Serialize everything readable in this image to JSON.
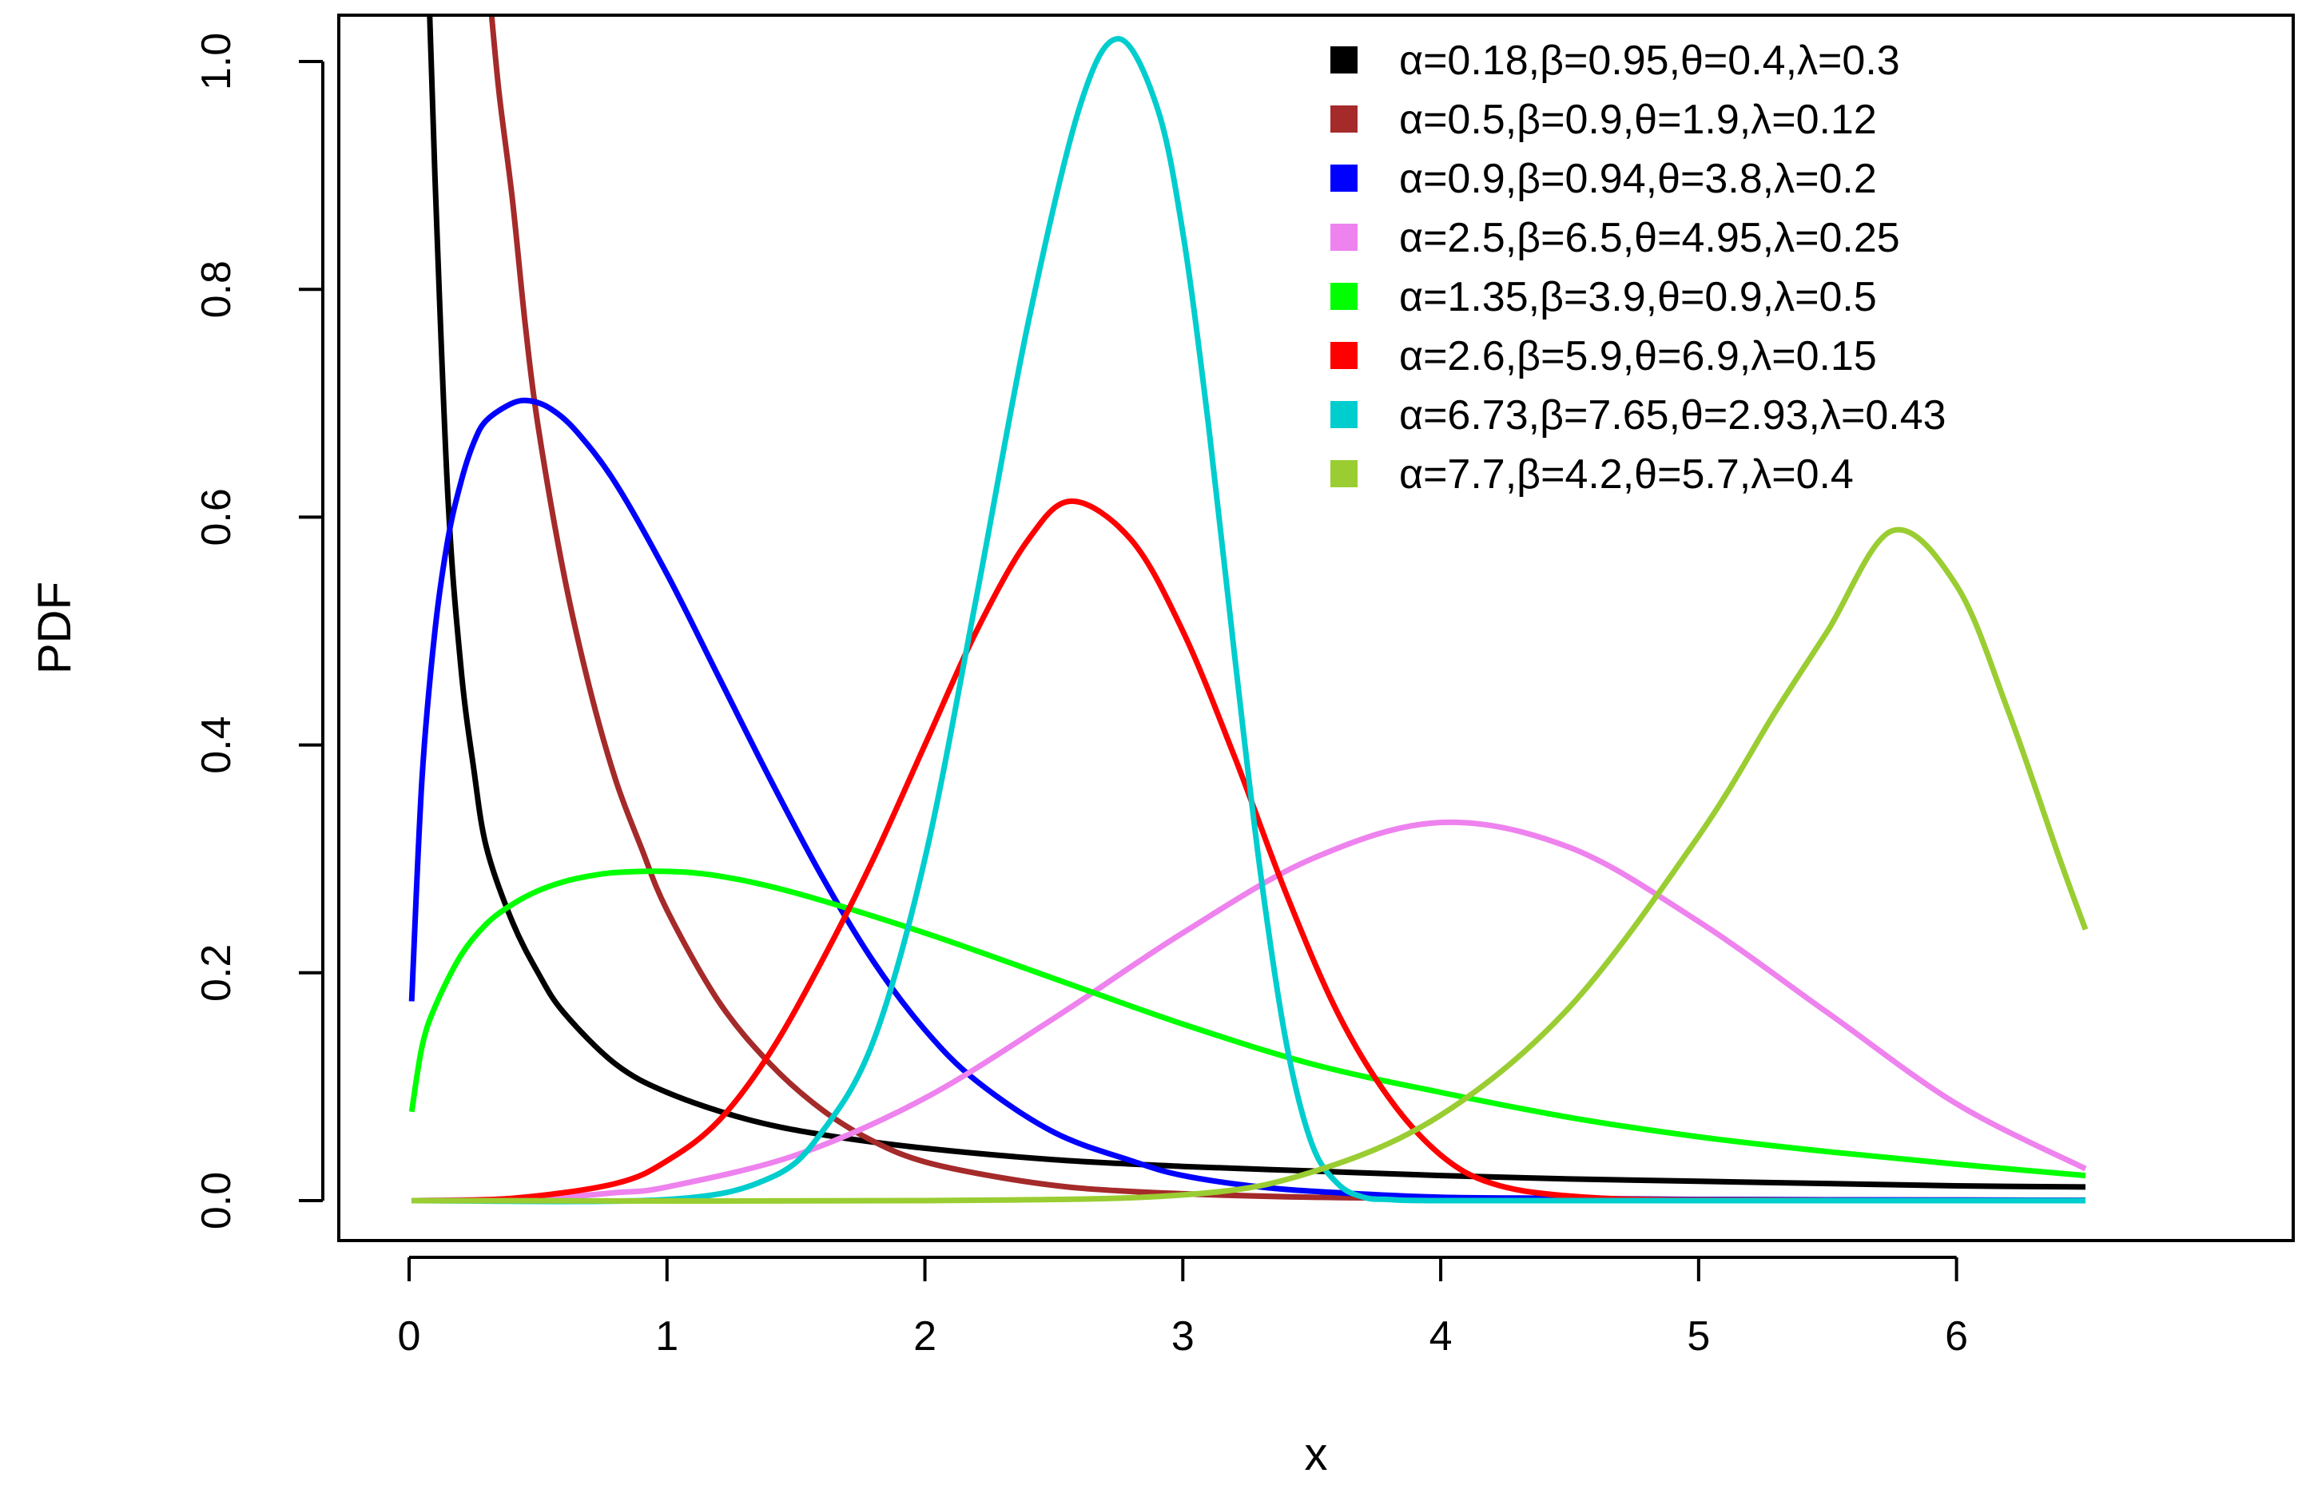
{
  "chart_data": {
    "type": "line",
    "xlabel": "x",
    "ylabel": "PDF",
    "xlim": [
      0,
      6.5
    ],
    "ylim": [
      0,
      1.0
    ],
    "x_ticks": [
      0,
      1,
      2,
      3,
      4,
      5,
      6
    ],
    "x_tick_labels": [
      "0",
      "1",
      "2",
      "3",
      "4",
      "5",
      "6"
    ],
    "y_ticks": [
      0,
      0.2,
      0.4,
      0.6,
      0.8,
      1.0
    ],
    "y_tick_labels": [
      "0.0",
      "0.2",
      "0.4",
      "0.6",
      "0.8",
      "1.0"
    ],
    "grid": false,
    "legend_position": "top-right",
    "series": [
      {
        "name": "α=0.18,β=0.95,θ=0.4,λ=0.3",
        "color": "#000000",
        "x": [
          0.08,
          0.1,
          0.15,
          0.2,
          0.25,
          0.3,
          0.4,
          0.5,
          0.6,
          0.8,
          1.0,
          1.3,
          1.6,
          2.0,
          2.5,
          3.0,
          3.5,
          4.0,
          4.5,
          5.0,
          5.5,
          6.0,
          6.5
        ],
        "y": [
          1.04,
          0.9,
          0.62,
          0.47,
          0.38,
          0.31,
          0.245,
          0.2,
          0.165,
          0.12,
          0.095,
          0.072,
          0.058,
          0.046,
          0.036,
          0.03,
          0.026,
          0.022,
          0.019,
          0.017,
          0.015,
          0.013,
          0.012
        ]
      },
      {
        "name": "α=0.5,β=0.9,θ=1.9,λ=0.12",
        "color": "#A52A2A",
        "x": [
          0.32,
          0.35,
          0.4,
          0.45,
          0.5,
          0.6,
          0.7,
          0.8,
          0.9,
          1.0,
          1.2,
          1.4,
          1.6,
          1.8,
          2.0,
          2.3,
          2.6,
          3.0,
          3.5,
          4.0,
          5.0,
          6.0,
          6.5
        ],
        "y": [
          1.04,
          0.97,
          0.88,
          0.77,
          0.68,
          0.55,
          0.45,
          0.37,
          0.31,
          0.255,
          0.175,
          0.12,
          0.08,
          0.052,
          0.034,
          0.02,
          0.011,
          0.006,
          0.003,
          0.002,
          0.001,
          0.0005,
          0.0003
        ]
      },
      {
        "name": "α=0.9,β=0.94,θ=3.8,λ=0.2",
        "color": "#0000FF",
        "x": [
          0.01,
          0.05,
          0.1,
          0.15,
          0.2,
          0.25,
          0.3,
          0.4,
          0.47,
          0.55,
          0.65,
          0.8,
          1.0,
          1.2,
          1.4,
          1.6,
          1.8,
          2.0,
          2.2,
          2.5,
          2.8,
          3.0,
          3.3,
          3.6,
          4.0,
          4.5,
          5.0,
          6.0,
          6.5
        ],
        "y": [
          0.175,
          0.37,
          0.5,
          0.58,
          0.63,
          0.665,
          0.685,
          0.7,
          0.702,
          0.695,
          0.675,
          0.63,
          0.55,
          0.46,
          0.37,
          0.285,
          0.21,
          0.15,
          0.105,
          0.06,
          0.035,
          0.022,
          0.012,
          0.007,
          0.003,
          0.002,
          0.001,
          0.0005,
          0.0003
        ]
      },
      {
        "name": "α=2.5,β=6.5,θ=4.95,λ=0.25",
        "color": "#EE82EE",
        "x": [
          0.01,
          0.5,
          0.8,
          1.0,
          1.5,
          2.0,
          2.5,
          3.0,
          3.5,
          4.0,
          4.5,
          5.0,
          5.5,
          6.0,
          6.5
        ],
        "y": [
          0.0,
          0.002,
          0.007,
          0.012,
          0.04,
          0.09,
          0.16,
          0.235,
          0.3,
          0.332,
          0.31,
          0.245,
          0.165,
          0.085,
          0.028
        ]
      },
      {
        "name": "α=1.35,β=3.9,θ=0.9,λ=0.5",
        "color": "#00FF00",
        "x": [
          0.01,
          0.05,
          0.1,
          0.2,
          0.3,
          0.4,
          0.5,
          0.6,
          0.7,
          0.8,
          1.0,
          1.2,
          1.5,
          2.0,
          2.5,
          3.0,
          3.5,
          4.0,
          4.5,
          5.0,
          5.5,
          6.0,
          6.5
        ],
        "y": [
          0.078,
          0.135,
          0.17,
          0.215,
          0.243,
          0.26,
          0.272,
          0.28,
          0.285,
          0.288,
          0.289,
          0.285,
          0.27,
          0.235,
          0.195,
          0.155,
          0.12,
          0.095,
          0.073,
          0.056,
          0.043,
          0.032,
          0.022
        ]
      },
      {
        "name": "α=2.6,β=5.9,θ=6.9,λ=0.15",
        "color": "#FF0000",
        "x": [
          0.01,
          0.4,
          0.8,
          1.0,
          1.2,
          1.4,
          1.6,
          1.8,
          2.0,
          2.2,
          2.4,
          2.57,
          2.8,
          3.0,
          3.2,
          3.4,
          3.6,
          3.8,
          4.0,
          4.2,
          4.5,
          5.0,
          6.5
        ],
        "y": [
          0.0,
          0.002,
          0.015,
          0.035,
          0.07,
          0.13,
          0.21,
          0.3,
          0.4,
          0.5,
          0.58,
          0.614,
          0.58,
          0.5,
          0.39,
          0.27,
          0.165,
          0.09,
          0.04,
          0.015,
          0.004,
          0.0005,
          0.0
        ]
      },
      {
        "name": "α=6.73,β=7.65,θ=2.93,λ=0.43",
        "color": "#00CDCD",
        "x": [
          0.01,
          1.0,
          1.4,
          1.6,
          1.8,
          2.0,
          2.2,
          2.4,
          2.6,
          2.75,
          2.9,
          3.0,
          3.1,
          3.2,
          3.3,
          3.4,
          3.5,
          3.6,
          3.7,
          3.8,
          4.0,
          5.0,
          6.5
        ],
        "y": [
          0.0,
          0.001,
          0.02,
          0.06,
          0.14,
          0.3,
          0.53,
          0.77,
          0.96,
          1.02,
          0.96,
          0.85,
          0.68,
          0.48,
          0.29,
          0.14,
          0.05,
          0.015,
          0.003,
          0.001,
          0.0,
          0.0,
          0.0
        ]
      },
      {
        "name": "α=7.7,β=4.2,θ=5.7,λ=0.4",
        "color": "#9ACD32",
        "x": [
          0.01,
          2.0,
          3.0,
          3.5,
          4.0,
          4.5,
          5.0,
          5.3,
          5.5,
          5.75,
          6.0,
          6.2,
          6.4,
          6.5
        ],
        "y": [
          0.0,
          0.0,
          0.005,
          0.025,
          0.075,
          0.17,
          0.32,
          0.43,
          0.5,
          0.588,
          0.54,
          0.43,
          0.3,
          0.238
        ]
      }
    ]
  }
}
